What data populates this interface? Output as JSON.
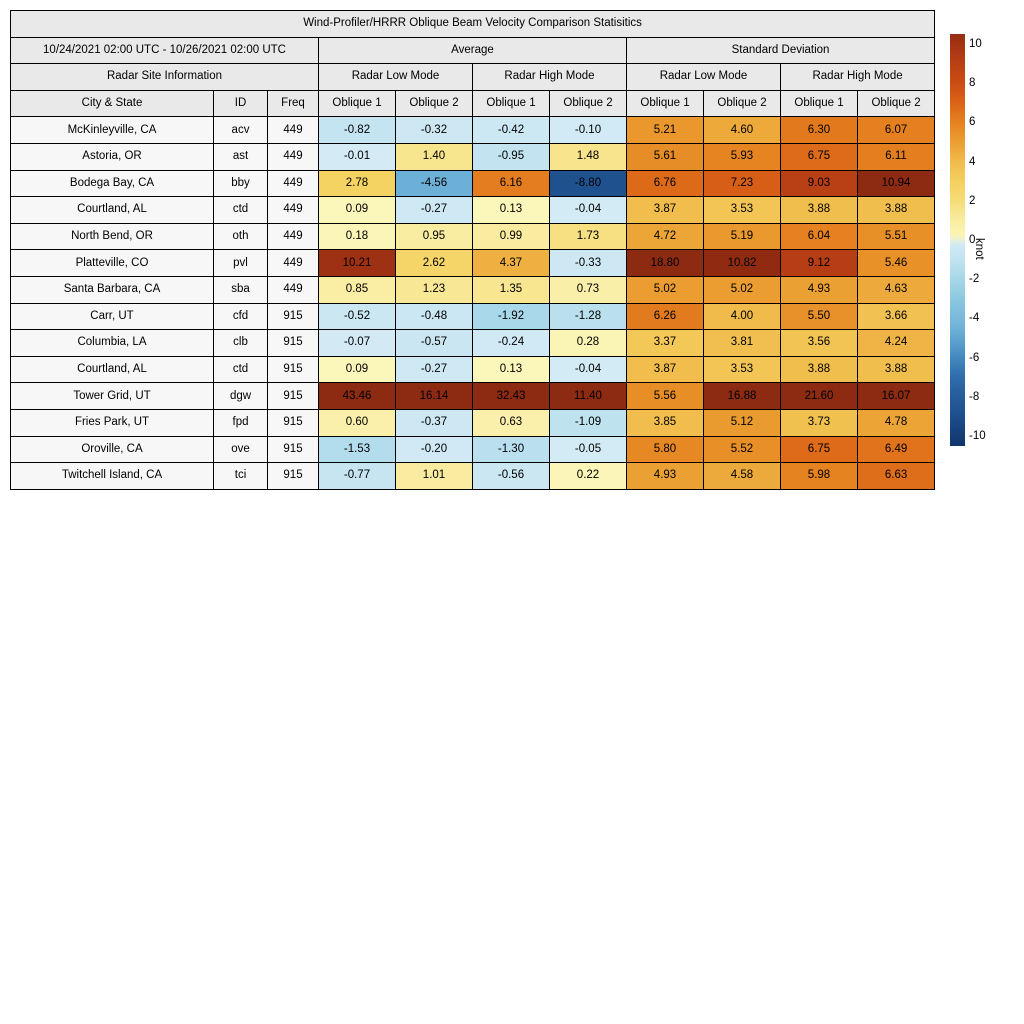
{
  "chart_data": {
    "type": "heatmap",
    "title": "Wind-Profiler/HRRR Oblique Beam Velocity Comparison Statisitics",
    "date_range": "10/24/2021 02:00 UTC - 10/26/2021 02:00 UTC",
    "group_headers": {
      "average": "Average",
      "std": "Standard Deviation"
    },
    "site_info_header": "Radar Site Information",
    "mode_headers": [
      "Radar Low Mode",
      "Radar High Mode",
      "Radar Low Mode",
      "Radar High Mode"
    ],
    "columns": [
      "City & State",
      "ID",
      "Freq",
      "Oblique 1",
      "Oblique 2",
      "Oblique 1",
      "Oblique 2",
      "Oblique 1",
      "Oblique 2",
      "Oblique 1",
      "Oblique 2"
    ],
    "rows": [
      {
        "city": "McKinleyville, CA",
        "id": "acv",
        "freq": "449",
        "values": [
          -0.82,
          -0.32,
          -0.42,
          -0.1,
          5.21,
          4.6,
          6.3,
          6.07
        ]
      },
      {
        "city": "Astoria, OR",
        "id": "ast",
        "freq": "449",
        "values": [
          -0.01,
          1.4,
          -0.95,
          1.48,
          5.61,
          5.93,
          6.75,
          6.11
        ]
      },
      {
        "city": "Bodega Bay, CA",
        "id": "bby",
        "freq": "449",
        "values": [
          2.78,
          -4.56,
          6.16,
          -8.8,
          6.76,
          7.23,
          9.03,
          10.94
        ]
      },
      {
        "city": "Courtland, AL",
        "id": "ctd",
        "freq": "449",
        "values": [
          0.09,
          -0.27,
          0.13,
          -0.04,
          3.87,
          3.53,
          3.88,
          3.88
        ]
      },
      {
        "city": "North Bend, OR",
        "id": "oth",
        "freq": "449",
        "values": [
          0.18,
          0.95,
          0.99,
          1.73,
          4.72,
          5.19,
          6.04,
          5.51
        ]
      },
      {
        "city": "Platteville, CO",
        "id": "pvl",
        "freq": "449",
        "values": [
          10.21,
          2.62,
          4.37,
          -0.33,
          18.8,
          10.82,
          9.12,
          5.46
        ]
      },
      {
        "city": "Santa Barbara, CA",
        "id": "sba",
        "freq": "449",
        "values": [
          0.85,
          1.23,
          1.35,
          0.73,
          5.02,
          5.02,
          4.93,
          4.63
        ]
      },
      {
        "city": "Carr, UT",
        "id": "cfd",
        "freq": "915",
        "values": [
          -0.52,
          -0.48,
          -1.92,
          -1.28,
          6.26,
          4.0,
          5.5,
          3.66
        ]
      },
      {
        "city": "Columbia, LA",
        "id": "clb",
        "freq": "915",
        "values": [
          -0.07,
          -0.57,
          -0.24,
          0.28,
          3.37,
          3.81,
          3.56,
          4.24
        ]
      },
      {
        "city": "Courtland, AL",
        "id": "ctd",
        "freq": "915",
        "values": [
          0.09,
          -0.27,
          0.13,
          -0.04,
          3.87,
          3.53,
          3.88,
          3.88
        ]
      },
      {
        "city": "Tower Grid, UT",
        "id": "dgw",
        "freq": "915",
        "values": [
          43.46,
          16.14,
          32.43,
          11.4,
          5.56,
          16.88,
          21.6,
          16.07
        ]
      },
      {
        "city": "Fries Park, UT",
        "id": "fpd",
        "freq": "915",
        "values": [
          0.6,
          -0.37,
          0.63,
          -1.09,
          3.85,
          5.12,
          3.73,
          4.78
        ]
      },
      {
        "city": "Oroville, CA",
        "id": "ove",
        "freq": "915",
        "values": [
          -1.53,
          -0.2,
          -1.3,
          -0.05,
          5.8,
          5.52,
          6.75,
          6.49
        ]
      },
      {
        "city": "Twitchell Island, CA",
        "id": "tci",
        "freq": "915",
        "values": [
          -0.77,
          1.01,
          -0.56,
          0.22,
          4.93,
          4.58,
          5.98,
          6.63
        ]
      }
    ],
    "colorbar": {
      "label": "knot",
      "ticks": [
        10,
        8,
        6,
        4,
        2,
        0,
        -2,
        -4,
        -6,
        -8,
        -10
      ],
      "vmin": -10,
      "vmax": 10,
      "clip_range": [
        -11,
        11
      ]
    },
    "colormap_anchors": [
      [
        -11,
        "#0b2d60"
      ],
      [
        -9,
        "#1d4e8c"
      ],
      [
        -7,
        "#2f6cab"
      ],
      [
        -6,
        "#4389bf"
      ],
      [
        -4.5,
        "#6fb2d8"
      ],
      [
        -3,
        "#8cc8e0"
      ],
      [
        -2,
        "#a6d7e8"
      ],
      [
        -1,
        "#c2e3f0"
      ],
      [
        -0.001,
        "#d4ebf5"
      ],
      [
        0.001,
        "#fbf7bd"
      ],
      [
        1,
        "#f9eca0"
      ],
      [
        2,
        "#f6dc76"
      ],
      [
        3,
        "#f4d05e"
      ],
      [
        4,
        "#f0bb4b"
      ],
      [
        5,
        "#eb9e31"
      ],
      [
        6,
        "#e58220"
      ],
      [
        7,
        "#db6317"
      ],
      [
        8,
        "#cb4d15"
      ],
      [
        9,
        "#ba4014"
      ],
      [
        10,
        "#a33213"
      ],
      [
        11,
        "#8c2a12"
      ]
    ],
    "style_colors": {
      "header_bg": "#e9e9e9",
      "label_bg": "#f7f7f7",
      "grid": "#000000"
    }
  }
}
